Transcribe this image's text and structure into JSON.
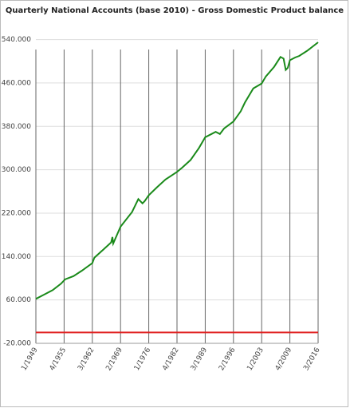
{
  "chart_data": {
    "type": "line",
    "title": "Quarterly National Accounts (base 2010) - Gross Domestic Product balance",
    "x": [
      1949,
      1951,
      1953,
      1955,
      1956,
      1958,
      1960,
      1962.5,
      1963,
      1965,
      1967,
      1967.3,
      1967.5,
      1969.25,
      1972,
      1973.5,
      1974.5,
      1975,
      1976,
      1978,
      1980,
      1982.75,
      1984,
      1986,
      1988,
      1989.5,
      1991,
      1992,
      1993,
      1994,
      1996.25,
      1998,
      1999,
      2001,
      2003,
      2004,
      2006,
      2007.5,
      2008.25,
      2008.75,
      2009.25,
      2009.75,
      2011,
      2012,
      2014,
      2016.5
    ],
    "series": [
      {
        "name": "Gross Domestic Product balance",
        "color": "#1a8a1a",
        "values": [
          62000,
          70000,
          78000,
          90000,
          98000,
          104000,
          114000,
          128000,
          138000,
          152000,
          166000,
          176000,
          164000,
          195000,
          222000,
          246000,
          238000,
          242000,
          253000,
          268000,
          282000,
          296000,
          304000,
          318000,
          340000,
          360000,
          366000,
          370000,
          366000,
          376000,
          389000,
          408000,
          424000,
          450000,
          459000,
          472000,
          490000,
          508000,
          505000,
          484000,
          488000,
          502000,
          507000,
          510000,
          520000,
          535000
        ]
      },
      {
        "name": "Zero line",
        "color": "#e02020",
        "values": [
          0,
          0,
          0,
          0,
          0,
          0,
          0,
          0,
          0,
          0,
          0,
          0,
          0,
          0,
          0,
          0,
          0,
          0,
          0,
          0,
          0,
          0,
          0,
          0,
          0,
          0,
          0,
          0,
          0,
          0,
          0,
          0,
          0,
          0,
          0,
          0,
          0,
          0,
          0,
          0,
          0,
          0,
          0,
          0,
          0,
          0
        ]
      }
    ],
    "xlim": [
      1949,
      2016.5
    ],
    "xticks": [
      {
        "value": 1949,
        "label": "1/1949"
      },
      {
        "value": 1955.75,
        "label": "4/1955"
      },
      {
        "value": 1962.5,
        "label": "3/1962"
      },
      {
        "value": 1969.25,
        "label": "2/1969"
      },
      {
        "value": 1976,
        "label": "1/1976"
      },
      {
        "value": 1982.75,
        "label": "4/1982"
      },
      {
        "value": 1989.5,
        "label": "3/1989"
      },
      {
        "value": 1996.25,
        "label": "2/1996"
      },
      {
        "value": 2003,
        "label": "1/2003"
      },
      {
        "value": 2009.75,
        "label": "4/2009"
      },
      {
        "value": 2016.5,
        "label": "3/2016"
      }
    ],
    "ylim": [
      -20000,
      560000
    ],
    "yticks": [
      {
        "value": -20000,
        "label": "-20.000"
      },
      {
        "value": 60000,
        "label": "60.000"
      },
      {
        "value": 140000,
        "label": "140.000"
      },
      {
        "value": 220000,
        "label": "220.000"
      },
      {
        "value": 300000,
        "label": "300.000"
      },
      {
        "value": 380000,
        "label": "380.000"
      },
      {
        "value": 460000,
        "label": "460.000"
      },
      {
        "value": 540000,
        "label": "540.000"
      }
    ],
    "grid": true
  }
}
